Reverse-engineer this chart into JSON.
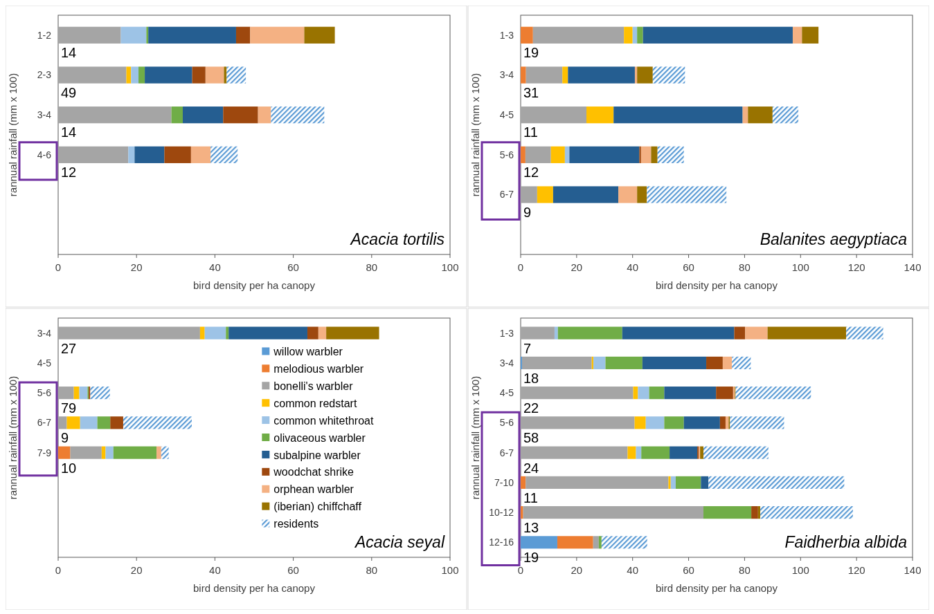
{
  "chart_data": [
    {
      "type": "bar",
      "orientation": "horizontal",
      "stacked": true,
      "title": "Acacia tortilis",
      "xlabel": "bird density per ha canopy",
      "ylabel": "rannual rainfall (mm x 100)",
      "categories": [
        "1-2",
        "2-3",
        "3-4",
        "4-6",
        null,
        null
      ],
      "xlim": [
        0,
        100
      ],
      "xticks": [
        0,
        20,
        40,
        60,
        80,
        100
      ],
      "legend": false,
      "grid": false,
      "series": [
        {
          "color": "#a5a5a5",
          "values": [
            16,
            17.4,
            28.9,
            17.9,
            null,
            null
          ]
        },
        {
          "color": "#ffc000",
          "values": [
            0,
            1.2,
            0,
            0,
            null,
            null
          ]
        },
        {
          "color": "#9dc3e6",
          "values": [
            6.5,
            1.9,
            0,
            1.6,
            null,
            null
          ]
        },
        {
          "color": "#70ad47",
          "values": [
            0.5,
            1.6,
            2.9,
            0,
            null,
            null
          ]
        },
        {
          "color": "#255e91",
          "values": [
            22.4,
            12.1,
            10.3,
            7.6,
            null,
            null
          ]
        },
        {
          "color": "#9e480e",
          "values": [
            3.6,
            3.4,
            8.9,
            6.8,
            null,
            null
          ]
        },
        {
          "color": "#f4b183",
          "values": [
            13.8,
            4.7,
            3.3,
            5,
            null,
            null
          ]
        },
        {
          "color": "#997300",
          "values": [
            7.8,
            0.7,
            0,
            0,
            null,
            null
          ]
        },
        {
          "color": "#5b9bd5",
          "values": [
            0,
            4.9,
            13.6,
            6.9,
            null,
            null
          ]
        }
      ],
      "annotations": [
        "14",
        "49",
        "14",
        "12"
      ]
    },
    {
      "type": "bar",
      "orientation": "horizontal",
      "stacked": true,
      "title": "Balanites aegyptiaca",
      "xlabel": "bird density per ha canopy",
      "ylabel": "rannual rainfall (mm x 100)",
      "categories": [
        "1-3",
        "3-4",
        "4-5",
        "5-6",
        "6-7",
        null
      ],
      "xlim": [
        0,
        140
      ],
      "xticks": [
        0,
        20,
        40,
        60,
        80,
        100,
        120,
        140
      ],
      "legend": false,
      "grid": false,
      "series": [
        {
          "color": "#ed7d31",
          "values": [
            4.4,
            1.9,
            0,
            1.7,
            0,
            null
          ]
        },
        {
          "color": "#a5a5a5",
          "values": [
            32.5,
            13,
            23.5,
            9.1,
            5.9,
            null
          ]
        },
        {
          "color": "#ffc000",
          "values": [
            3.1,
            2,
            9.7,
            5,
            5.7,
            null
          ]
        },
        {
          "color": "#9dc3e6",
          "values": [
            1.6,
            0,
            0,
            1.6,
            0,
            null
          ]
        },
        {
          "color": "#70ad47",
          "values": [
            2.1,
            0,
            0,
            0,
            0,
            null
          ]
        },
        {
          "color": "#255e91",
          "values": [
            53.5,
            23.9,
            46.1,
            25,
            23.3,
            null
          ]
        },
        {
          "color": "#9e480e",
          "values": [
            0,
            0,
            0,
            0.6,
            0,
            null
          ]
        },
        {
          "color": "#f4b183",
          "values": [
            3.3,
            0.8,
            1.9,
            3.6,
            6.7,
            null
          ]
        },
        {
          "color": "#997300",
          "values": [
            5.9,
            5.6,
            8.8,
            2.3,
            3.5,
            null
          ]
        },
        {
          "color": "#5b9bd5",
          "values": [
            0,
            11.5,
            9.2,
            9.4,
            28.4,
            null
          ]
        }
      ],
      "annotations": [
        "19",
        "31",
        "11",
        "12",
        "9"
      ]
    },
    {
      "type": "bar",
      "orientation": "horizontal",
      "stacked": true,
      "title": "Acacia seyal",
      "xlabel": "bird density per ha canopy",
      "ylabel": "rannual rainfall (mm x 100)",
      "categories": [
        "3-4",
        "4-5",
        "5-6",
        "6-7",
        "7-9",
        null,
        null,
        null
      ],
      "xlim": [
        0,
        100
      ],
      "xticks": [
        0,
        20,
        40,
        60,
        80,
        100
      ],
      "legend": "right",
      "grid": false,
      "series": [
        {
          "name": "willow warbler",
          "color": "#5b9bd5",
          "values": [
            0,
            null,
            0,
            0,
            0,
            null,
            null,
            null
          ]
        },
        {
          "name": "melodious warbler",
          "color": "#ed7d31",
          "values": [
            0,
            null,
            0,
            0,
            3.1,
            null,
            null,
            null
          ]
        },
        {
          "name": "bonelli's warbler",
          "color": "#a5a5a5",
          "values": [
            36.2,
            null,
            4,
            2.2,
            8,
            null,
            null,
            null
          ]
        },
        {
          "name": "common redstart",
          "color": "#ffc000",
          "values": [
            1.2,
            null,
            1.4,
            3.4,
            1,
            null,
            null,
            null
          ]
        },
        {
          "name": "common whitethroat",
          "color": "#9dc3e6",
          "values": [
            5.4,
            null,
            2.1,
            4.4,
            2,
            null,
            null,
            null
          ]
        },
        {
          "name": "olivaceous warbler",
          "color": "#70ad47",
          "values": [
            0.7,
            null,
            0.3,
            3.3,
            11,
            null,
            null,
            null
          ]
        },
        {
          "name": "subalpine warbler",
          "color": "#255e91",
          "values": [
            20.1,
            null,
            0,
            0,
            0,
            null,
            null,
            null
          ]
        },
        {
          "name": "woodchat shrike",
          "color": "#9e480e",
          "values": [
            2.8,
            null,
            0.4,
            3.3,
            0,
            null,
            null,
            null
          ]
        },
        {
          "name": "orphean warbler",
          "color": "#f4b183",
          "values": [
            2,
            null,
            0,
            0,
            1.2,
            null,
            null,
            null
          ]
        },
        {
          "name": "(iberian) chiffchaff",
          "color": "#997300",
          "values": [
            13.5,
            null,
            0,
            0,
            0,
            null,
            null,
            null
          ]
        },
        {
          "name": "residents",
          "color": "#5b9bd5",
          "values": [
            0,
            null,
            5,
            17.5,
            1.9,
            null,
            null,
            null
          ]
        }
      ],
      "annotations": [
        "27",
        "79",
        "9",
        "10"
      ]
    },
    {
      "type": "bar",
      "orientation": "horizontal",
      "stacked": true,
      "title": "Faidherbia albida",
      "xlabel": "bird density per ha canopy",
      "ylabel": "rannual rainfall (mm x 100)",
      "categories": [
        "1-3",
        "3-4",
        "4-5",
        "5-6",
        "6-7",
        "7-10",
        "10-12",
        "12-16"
      ],
      "xlim": [
        0,
        140
      ],
      "xticks": [
        0,
        20,
        40,
        60,
        80,
        100,
        120,
        140
      ],
      "legend": false,
      "grid": false,
      "series": [
        {
          "color": "#5b9bd5",
          "values": [
            0,
            0.5,
            0,
            0,
            0,
            0,
            0,
            13.1
          ]
        },
        {
          "color": "#ed7d31",
          "values": [
            0,
            0,
            0,
            0,
            0,
            1.8,
            0.9,
            12.8
          ]
        },
        {
          "color": "#a5a5a5",
          "values": [
            12.1,
            24.9,
            40.2,
            40.7,
            38.2,
            51,
            64.4,
            2
          ]
        },
        {
          "color": "#ffc000",
          "values": [
            0,
            0.6,
            1.7,
            4,
            3,
            0.8,
            0,
            0
          ]
        },
        {
          "color": "#9dc3e6",
          "values": [
            1.2,
            4.3,
            4,
            6.6,
            1.9,
            1.8,
            0,
            0
          ]
        },
        {
          "color": "#70ad47",
          "values": [
            23,
            13.2,
            5.4,
            7,
            10.1,
            9,
            17.1,
            1
          ]
        },
        {
          "color": "#255e91",
          "values": [
            40,
            22.8,
            18.5,
            12.9,
            9.9,
            2.7,
            0,
            0
          ]
        },
        {
          "color": "#9e480e",
          "values": [
            3.9,
            5.9,
            6.1,
            2,
            0.5,
            0,
            2.4,
            0
          ]
        },
        {
          "color": "#f4b183",
          "values": [
            8,
            3.3,
            0.6,
            1.1,
            0.5,
            0,
            0,
            0
          ]
        },
        {
          "color": "#997300",
          "values": [
            28.1,
            0,
            0.3,
            0.5,
            1.2,
            0,
            0.8,
            0
          ]
        },
        {
          "color": "#5b9bd5",
          "values": [
            13.2,
            6.7,
            26.9,
            19.3,
            23.2,
            48.5,
            33.1,
            16.3
          ]
        }
      ],
      "annotations": [
        "7",
        "18",
        "22",
        "58",
        "24",
        "11",
        "13",
        "19"
      ]
    }
  ]
}
